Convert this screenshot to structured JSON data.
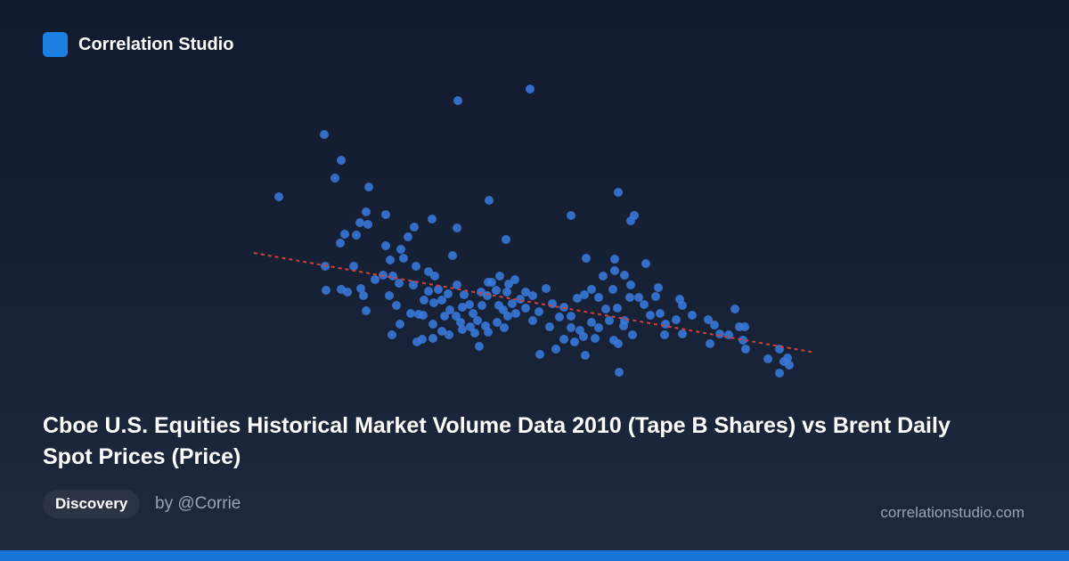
{
  "header": {
    "brand": "Correlation Studio"
  },
  "chart_data": {
    "type": "scatter",
    "title": "Cboe U.S. Equities Historical Market Volume Data 2010 (Tape B Shares) vs Brent Daily Spot Prices (Price)",
    "color": "#3a7be0",
    "xlim": [
      0,
      640
    ],
    "ylim": [
      0,
      340
    ],
    "x": [
      33,
      84,
      103,
      96,
      134,
      234,
      315,
      269,
      414,
      361,
      432,
      428,
      153,
      131,
      124,
      120,
      107,
      102,
      133,
      205,
      233,
      185,
      178,
      288,
      153,
      170,
      158,
      173,
      228,
      378,
      410,
      445,
      410,
      85,
      117,
      86,
      103,
      110,
      125,
      128,
      131,
      141,
      150,
      161,
      168,
      187,
      201,
      208,
      184,
      157,
      165,
      160,
      169,
      188,
      194,
      206,
      216,
      224,
      239,
      258,
      268,
      181,
      195,
      207,
      212,
      201,
      216,
      225,
      232,
      239,
      247,
      251,
      256,
      261,
      267,
      272,
      281,
      291,
      298,
      304,
      310,
      318,
      325,
      333,
      318,
      340,
      348,
      353,
      361,
      368,
      376,
      384,
      392,
      400,
      408,
      413,
      421,
      427,
      437,
      443,
      459,
      461,
      483,
      486,
      497,
      515,
      522,
      545,
      550,
      556,
      538,
      528,
      517,
      554,
      557,
      582,
      595,
      595,
      600,
      604,
      606,
      415,
      326,
      377,
      344,
      353,
      365,
      375,
      388,
      409,
      414,
      430,
      466,
      486,
      467,
      428,
      456,
      421,
      397,
      289,
      278,
      286,
      299,
      295,
      285,
      290,
      280,
      241,
      233,
      237,
      248,
      253,
      265,
      206,
      219,
      190,
      196,
      223,
      260,
      268,
      277,
      310,
      337,
      361,
      371,
      384,
      392,
      404,
      420,
      450,
      479
    ],
    "y": [
      209,
      279,
      250,
      230,
      220,
      317,
      330,
      205,
      214,
      188,
      188,
      182,
      189,
      192,
      180,
      166,
      167,
      157,
      178,
      184,
      174,
      175,
      164,
      161,
      154,
      150,
      138,
      140,
      143,
      140,
      139,
      134,
      126,
      131,
      131,
      104,
      105,
      102,
      106,
      98,
      81,
      116,
      121,
      120,
      112,
      131,
      125,
      120,
      110,
      98,
      87,
      54,
      66,
      46,
      49,
      50,
      58,
      54,
      60,
      41,
      57,
      78,
      76,
      90,
      105,
      103,
      93,
      82,
      75,
      85,
      88,
      78,
      70,
      87,
      98,
      113,
      120,
      111,
      116,
      94,
      84,
      98,
      80,
      106,
      70,
      89,
      74,
      85,
      75,
      95,
      99,
      105,
      96,
      83,
      105,
      84,
      70,
      96,
      96,
      88,
      107,
      78,
      94,
      87,
      76,
      71,
      65,
      83,
      63,
      63,
      54,
      55,
      44,
      48,
      38,
      27,
      38,
      11,
      24,
      28,
      20,
      12,
      32,
      31,
      38,
      49,
      46,
      52,
      50,
      48,
      44,
      54,
      54,
      55,
      66,
      110,
      97,
      121,
      120,
      102,
      68,
      62,
      78,
      89,
      82,
      75,
      87,
      99,
      110,
      68,
      63,
      56,
      64,
      66,
      75,
      77,
      93,
      100,
      102,
      113,
      104,
      102,
      63,
      62,
      59,
      68,
      62,
      70,
      64,
      76,
      71
    ],
    "trendline": {
      "color": "#d0413d",
      "x": [
        5,
        635
      ],
      "y": [
        146,
        34
      ]
    }
  },
  "footer": {
    "tag": "Discovery",
    "author": "by @Corrie",
    "site": "correlationstudio.com"
  }
}
